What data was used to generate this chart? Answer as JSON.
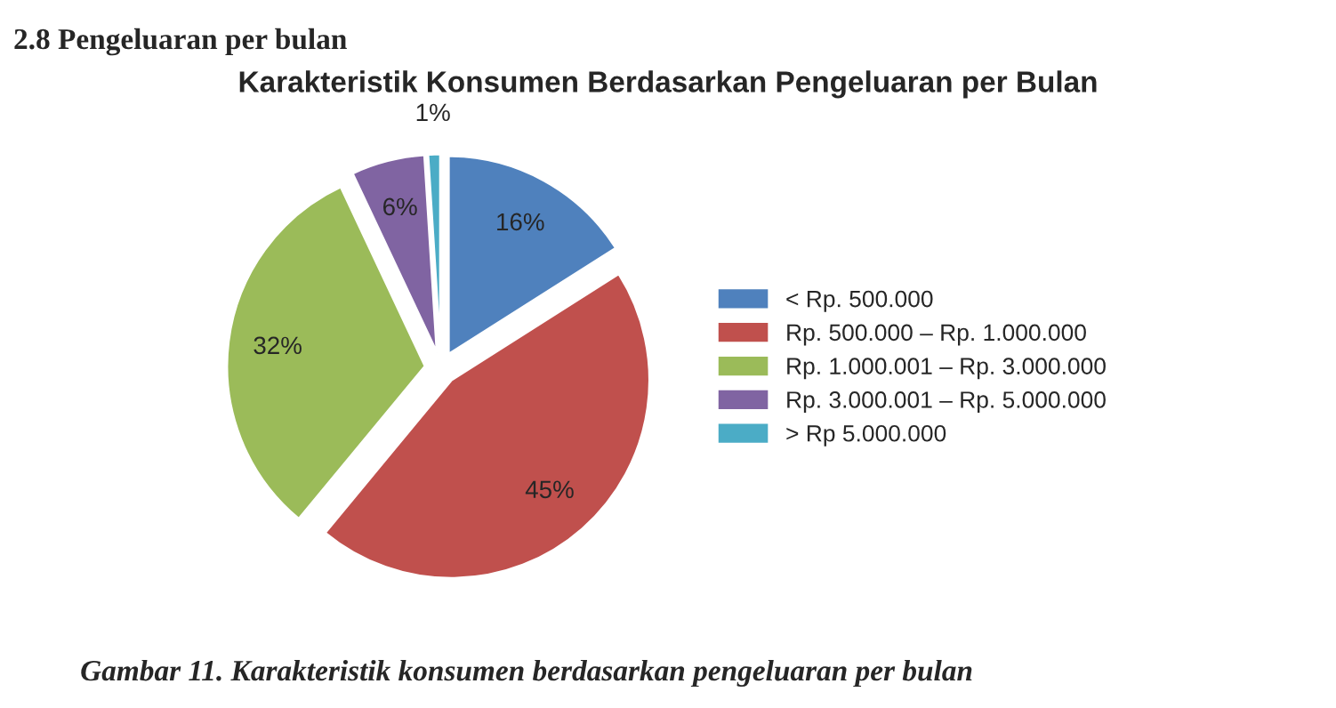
{
  "chart_data": {
    "type": "pie",
    "title": "Karakteristik Konsumen Berdasarkan Pengeluaran per Bulan",
    "categories": [
      "< Rp. 500.000",
      "Rp. 500.000 – Rp. 1.000.000",
      "Rp. 1.000.001 – Rp. 3.000.000",
      "Rp. 3.000.001 – Rp. 5.000.000",
      "> Rp 5.000.000"
    ],
    "values": [
      16,
      45,
      32,
      6,
      1
    ],
    "colors": [
      "#4f81bd",
      "#c0504d",
      "#9bbb59",
      "#8064a2",
      "#4bacc6"
    ],
    "value_labels": [
      "16%",
      "45%",
      "32%",
      "6%",
      "1%"
    ],
    "legend": "right",
    "annotations": [
      "2.8 Pengeluaran per bulan",
      "Gambar 11. Karakteristik konsumen berdasarkan pengeluaran per bulan"
    ]
  }
}
